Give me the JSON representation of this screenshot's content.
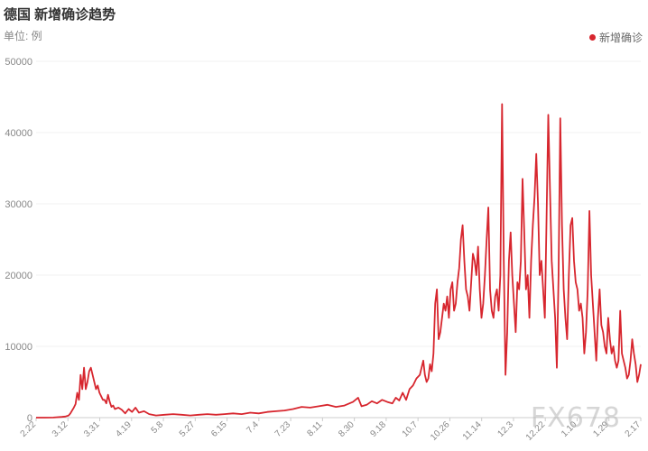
{
  "header": {
    "title": "德国 新增确诊趋势",
    "unit": "单位: 例"
  },
  "legend": {
    "label": "新增确诊"
  },
  "watermark": "FX678",
  "colors": {
    "series": "#d7262e",
    "grid": "#f0f0f0",
    "axis": "#cccccc",
    "text": "#888888"
  },
  "chart_data": {
    "type": "line",
    "title": "德国 新增确诊趋势",
    "ylabel": "单位: 例",
    "ylim": [
      0,
      50000
    ],
    "yticks": [
      0,
      10000,
      20000,
      30000,
      40000,
      50000
    ],
    "grid": true,
    "legend_position": "top-right",
    "xtick_labels": [
      "2.22",
      "3.12",
      "3.31",
      "4.19",
      "5.8",
      "5.27",
      "6.15",
      "7.4",
      "7.23",
      "8.11",
      "8.30",
      "9.18",
      "10.7",
      "10.26",
      "11.14",
      "12.3",
      "12.22",
      "1.10",
      "1.29",
      "2.17"
    ],
    "series": [
      {
        "name": "新增确诊",
        "points": [
          [
            0,
            0
          ],
          [
            5,
            0
          ],
          [
            10,
            10
          ],
          [
            15,
            100
          ],
          [
            17,
            150
          ],
          [
            19,
            300
          ],
          [
            20,
            600
          ],
          [
            21,
            1000
          ],
          [
            22,
            1400
          ],
          [
            23,
            1900
          ],
          [
            24,
            3500
          ],
          [
            25,
            2500
          ],
          [
            26,
            6000
          ],
          [
            27,
            4000
          ],
          [
            28,
            7000
          ],
          [
            29,
            4000
          ],
          [
            30,
            5000
          ],
          [
            31,
            6500
          ],
          [
            32,
            7000
          ],
          [
            33,
            6000
          ],
          [
            34,
            5000
          ],
          [
            35,
            4000
          ],
          [
            36,
            4500
          ],
          [
            37,
            3500
          ],
          [
            38,
            3000
          ],
          [
            39,
            2500
          ],
          [
            40,
            2500
          ],
          [
            41,
            2000
          ],
          [
            42,
            3200
          ],
          [
            43,
            2200
          ],
          [
            44,
            1500
          ],
          [
            45,
            1700
          ],
          [
            46,
            1200
          ],
          [
            48,
            1400
          ],
          [
            50,
            1100
          ],
          [
            52,
            600
          ],
          [
            54,
            1200
          ],
          [
            56,
            800
          ],
          [
            58,
            1400
          ],
          [
            60,
            700
          ],
          [
            63,
            900
          ],
          [
            66,
            500
          ],
          [
            70,
            300
          ],
          [
            75,
            400
          ],
          [
            80,
            500
          ],
          [
            85,
            400
          ],
          [
            90,
            300
          ],
          [
            95,
            400
          ],
          [
            100,
            500
          ],
          [
            105,
            400
          ],
          [
            110,
            500
          ],
          [
            115,
            600
          ],
          [
            120,
            500
          ],
          [
            125,
            700
          ],
          [
            130,
            600
          ],
          [
            135,
            800
          ],
          [
            140,
            900
          ],
          [
            145,
            1000
          ],
          [
            150,
            1200
          ],
          [
            155,
            1500
          ],
          [
            160,
            1400
          ],
          [
            165,
            1600
          ],
          [
            170,
            1800
          ],
          [
            175,
            1500
          ],
          [
            180,
            1700
          ],
          [
            185,
            2200
          ],
          [
            188,
            2800
          ],
          [
            190,
            1600
          ],
          [
            193,
            1800
          ],
          [
            196,
            2300
          ],
          [
            199,
            2000
          ],
          [
            202,
            2500
          ],
          [
            205,
            2200
          ],
          [
            208,
            2000
          ],
          [
            210,
            2800
          ],
          [
            212,
            2400
          ],
          [
            214,
            3500
          ],
          [
            216,
            2500
          ],
          [
            218,
            4000
          ],
          [
            220,
            4500
          ],
          [
            222,
            5500
          ],
          [
            224,
            6000
          ],
          [
            226,
            8000
          ],
          [
            227,
            6000
          ],
          [
            228,
            5000
          ],
          [
            229,
            5500
          ],
          [
            230,
            7500
          ],
          [
            231,
            6500
          ],
          [
            232,
            9000
          ],
          [
            233,
            16000
          ],
          [
            234,
            18000
          ],
          [
            235,
            11000
          ],
          [
            236,
            12000
          ],
          [
            237,
            14000
          ],
          [
            238,
            16000
          ],
          [
            239,
            15000
          ],
          [
            240,
            17000
          ],
          [
            241,
            14000
          ],
          [
            242,
            18000
          ],
          [
            243,
            19000
          ],
          [
            244,
            15000
          ],
          [
            245,
            16000
          ],
          [
            246,
            19000
          ],
          [
            247,
            21000
          ],
          [
            248,
            25000
          ],
          [
            249,
            27000
          ],
          [
            250,
            22000
          ],
          [
            251,
            18000
          ],
          [
            252,
            17000
          ],
          [
            253,
            15000
          ],
          [
            254,
            19000
          ],
          [
            255,
            23000
          ],
          [
            256,
            22000
          ],
          [
            257,
            20000
          ],
          [
            258,
            24000
          ],
          [
            259,
            18000
          ],
          [
            260,
            14000
          ],
          [
            261,
            16000
          ],
          [
            262,
            20000
          ],
          [
            263,
            25000
          ],
          [
            264,
            29500
          ],
          [
            265,
            18000
          ],
          [
            266,
            15000
          ],
          [
            267,
            14000
          ],
          [
            268,
            17000
          ],
          [
            269,
            18000
          ],
          [
            270,
            15000
          ],
          [
            271,
            20000
          ],
          [
            272,
            44000
          ],
          [
            273,
            22000
          ],
          [
            274,
            6000
          ],
          [
            275,
            12000
          ],
          [
            276,
            22000
          ],
          [
            277,
            26000
          ],
          [
            278,
            20000
          ],
          [
            279,
            16000
          ],
          [
            280,
            12000
          ],
          [
            281,
            19000
          ],
          [
            282,
            18000
          ],
          [
            283,
            22000
          ],
          [
            284,
            33500
          ],
          [
            285,
            26000
          ],
          [
            286,
            18000
          ],
          [
            287,
            20000
          ],
          [
            288,
            14000
          ],
          [
            289,
            22000
          ],
          [
            290,
            27000
          ],
          [
            291,
            31000
          ],
          [
            292,
            37000
          ],
          [
            293,
            30000
          ],
          [
            294,
            20000
          ],
          [
            295,
            22000
          ],
          [
            296,
            18000
          ],
          [
            297,
            14000
          ],
          [
            298,
            28000
          ],
          [
            299,
            42500
          ],
          [
            300,
            32000
          ],
          [
            301,
            22000
          ],
          [
            302,
            18000
          ],
          [
            303,
            14000
          ],
          [
            304,
            7000
          ],
          [
            305,
            20000
          ],
          [
            306,
            42000
          ],
          [
            307,
            27000
          ],
          [
            308,
            18000
          ],
          [
            309,
            14000
          ],
          [
            310,
            11000
          ],
          [
            311,
            20000
          ],
          [
            312,
            27000
          ],
          [
            313,
            28000
          ],
          [
            314,
            22000
          ],
          [
            315,
            19000
          ],
          [
            316,
            18000
          ],
          [
            317,
            15000
          ],
          [
            318,
            16000
          ],
          [
            319,
            14000
          ],
          [
            320,
            9000
          ],
          [
            321,
            12000
          ],
          [
            322,
            18000
          ],
          [
            323,
            29000
          ],
          [
            324,
            20000
          ],
          [
            325,
            16000
          ],
          [
            326,
            12000
          ],
          [
            327,
            8000
          ],
          [
            328,
            14000
          ],
          [
            329,
            18000
          ],
          [
            330,
            13000
          ],
          [
            331,
            12000
          ],
          [
            332,
            10000
          ],
          [
            333,
            9000
          ],
          [
            334,
            14000
          ],
          [
            335,
            11000
          ],
          [
            336,
            9000
          ],
          [
            337,
            10000
          ],
          [
            338,
            8000
          ],
          [
            339,
            7000
          ],
          [
            340,
            8000
          ],
          [
            341,
            15000
          ],
          [
            342,
            9000
          ],
          [
            343,
            8000
          ],
          [
            344,
            7000
          ],
          [
            345,
            5500
          ],
          [
            346,
            6000
          ],
          [
            347,
            8000
          ],
          [
            348,
            11000
          ],
          [
            349,
            9000
          ],
          [
            350,
            7500
          ],
          [
            351,
            5000
          ],
          [
            352,
            6000
          ],
          [
            353,
            7500
          ]
        ]
      }
    ]
  }
}
